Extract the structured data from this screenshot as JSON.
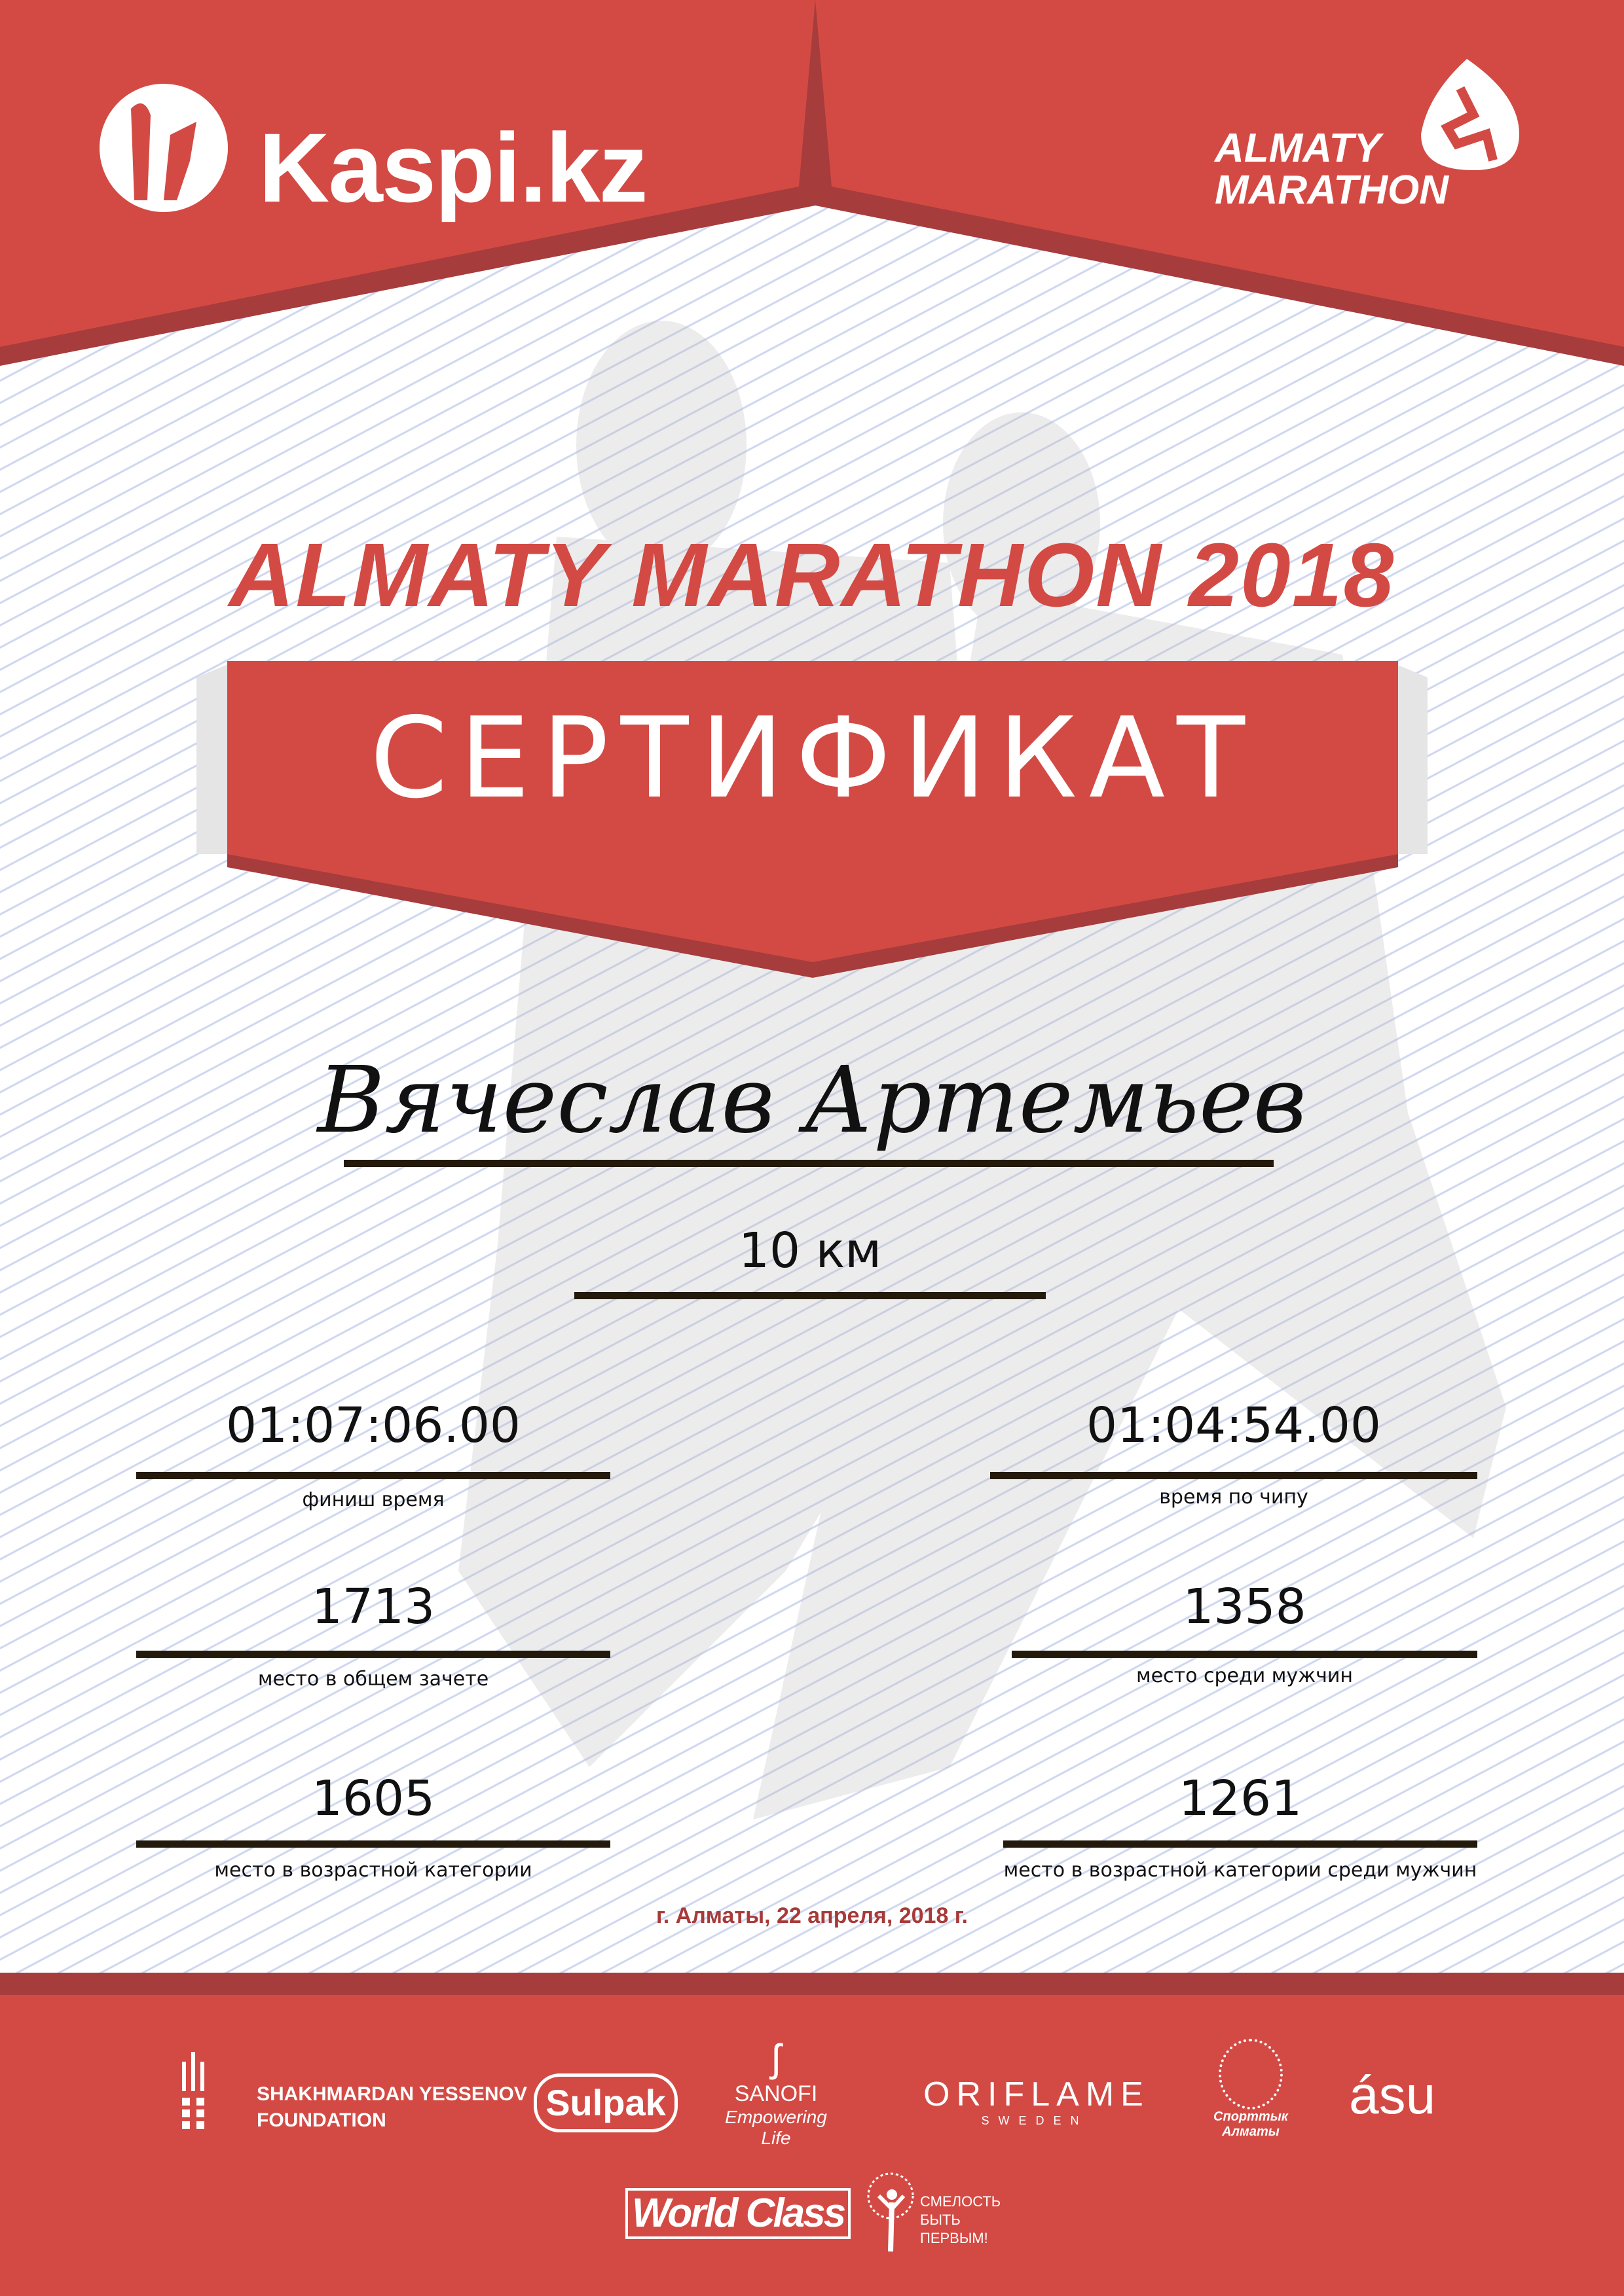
{
  "colors": {
    "brand_red": "#d34a44",
    "dark_red": "#a63c3c",
    "date_red": "#a83a3a"
  },
  "header": {
    "sponsor_logo": "Kaspi.kz",
    "event_logo_line1": "ALMATY",
    "event_logo_line2": "MARATHON"
  },
  "title": "ALMATY MARATHON 2018",
  "banner": "СЕРТИФИКАТ",
  "participant": {
    "name": "Вячеслав Артемьев",
    "distance": "10 км"
  },
  "results": [
    {
      "value": "01:07:06.00",
      "label": "финиш время"
    },
    {
      "value": "01:04:54.00",
      "label": "время по чипу"
    },
    {
      "value": "1713",
      "label": "место в общем зачете"
    },
    {
      "value": "1358",
      "label": "место среди мужчин"
    },
    {
      "value": "1605",
      "label": "место в возрастной категории"
    },
    {
      "value": "1261",
      "label": "место в возрастной категории среди мужчин"
    }
  ],
  "date": "г. Алматы, 22 апреля, 2018 г.",
  "sponsors": {
    "yessenov_line1": "SHAKHMARDAN YESSENOV",
    "yessenov_line2": "FOUNDATION",
    "sulpak": "Sulpak",
    "sanofi": "SANOFI",
    "sanofi_tagline": "Empowering Life",
    "oriflame": "ORIFLAME",
    "oriflame_sub": "SWEDEN",
    "sport_almaty": "Спорттык Алматы",
    "asu": "ásu",
    "worldclass": "World Class",
    "fund_line1": "СМЕЛОСТЬ",
    "fund_line2": "БЫТЬ",
    "fund_line3": "ПЕРВЫМ!"
  }
}
